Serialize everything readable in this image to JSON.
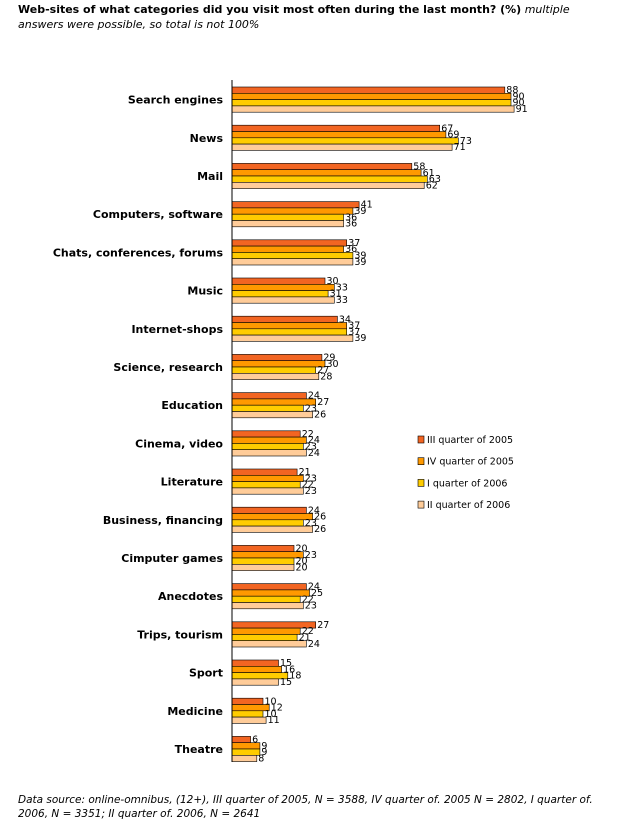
{
  "title_bold": "Web-sites of what categories did you visit most often during the last month? (%)",
  "title_note": "multiple answers were possible, so total is not 100%",
  "footer": "Data source: online-omnibus, (12+), III quarter of 2005, N = 3588, IV quarter of. 2005 N = 2802, I quarter of. 2006, N = 3351; II quarter of. 2006, N = 2641",
  "colors": {
    "III quarter of 2005": "#f26522",
    "IV quarter of  2005": "#ff9900",
    "I quarter of  2006": "#ffcc00",
    "II quarter of  2006": "#ffcc99",
    "axis": "#000000"
  },
  "chart_data": {
    "type": "bar",
    "orientation": "horizontal",
    "title": "Web-sites of what categories did you visit most often during the last month? (%)",
    "xlabel": "",
    "ylabel": "",
    "xlim": [
      0,
      100
    ],
    "grid": false,
    "legend_position": "right",
    "categories": [
      "Search engines",
      "News",
      "Mail",
      "Computers, software",
      "Chats, conferences, forums",
      "Music",
      "Internet-shops",
      "Science, research",
      "Education",
      "Cinema, video",
      "Literature",
      "Business, financing",
      "Cimputer games",
      "Anecdotes",
      "Trips, tourism",
      "Sport",
      "Medicine",
      "Theatre"
    ],
    "series": [
      {
        "name": "III quarter of 2005",
        "values": [
          88,
          67,
          58,
          41,
          37,
          30,
          34,
          29,
          24,
          22,
          21,
          24,
          20,
          24,
          27,
          15,
          10,
          6
        ]
      },
      {
        "name": "IV quarter of  2005",
        "values": [
          90,
          69,
          61,
          39,
          36,
          33,
          37,
          30,
          27,
          24,
          23,
          26,
          23,
          25,
          22,
          16,
          12,
          9
        ]
      },
      {
        "name": "I quarter of  2006",
        "values": [
          90,
          73,
          63,
          36,
          39,
          31,
          37,
          27,
          23,
          23,
          22,
          23,
          20,
          22,
          21,
          18,
          10,
          9
        ]
      },
      {
        "name": "II quarter of  2006",
        "values": [
          91,
          71,
          62,
          36,
          39,
          33,
          39,
          28,
          26,
          24,
          23,
          26,
          20,
          23,
          24,
          15,
          11,
          8
        ]
      }
    ]
  }
}
